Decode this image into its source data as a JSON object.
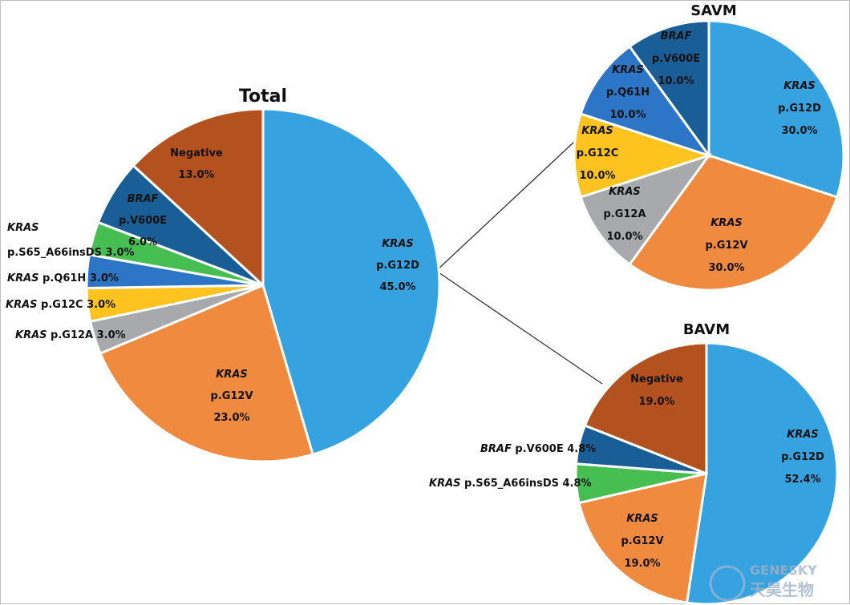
{
  "chart_data": [
    {
      "type": "pie",
      "title": "Total",
      "slices": [
        {
          "gene": "KRAS",
          "variant": "p.G12D",
          "value": 45.0,
          "pct": "45.0%",
          "color": "#36A2E0"
        },
        {
          "gene": "KRAS",
          "variant": "p.G12V",
          "value": 23.0,
          "pct": "23.0%",
          "color": "#F08A3E"
        },
        {
          "gene": "KRAS",
          "variant": "p.G12A",
          "value": 3.0,
          "pct": "3.0%",
          "color": "#A7A9AC"
        },
        {
          "gene": "KRAS",
          "variant": "p.G12C",
          "value": 3.0,
          "pct": "3.0%",
          "color": "#FFC320"
        },
        {
          "gene": "KRAS",
          "variant": "p.Q61H",
          "value": 3.0,
          "pct": "3.0%",
          "color": "#2D75C6"
        },
        {
          "gene": "KRAS",
          "variant": "p.S65_A66insDS",
          "value": 3.0,
          "pct": "3.0%",
          "color": "#47BE52"
        },
        {
          "gene": "BRAF",
          "variant": "p.V600E",
          "value": 6.0,
          "pct": "6.0%",
          "color": "#1A5E97"
        },
        {
          "gene": "",
          "variant": "Negative",
          "value": 13.0,
          "pct": "13.0%",
          "color": "#B4521F"
        }
      ]
    },
    {
      "type": "pie",
      "title": "SAVM",
      "slices": [
        {
          "gene": "KRAS",
          "variant": "p.G12D",
          "value": 30.0,
          "pct": "30.0%",
          "color": "#36A2E0"
        },
        {
          "gene": "KRAS",
          "variant": "p.G12V",
          "value": 30.0,
          "pct": "30.0%",
          "color": "#F08A3E"
        },
        {
          "gene": "KRAS",
          "variant": "p.G12A",
          "value": 10.0,
          "pct": "10.0%",
          "color": "#A7A9AC"
        },
        {
          "gene": "KRAS",
          "variant": "p.G12C",
          "value": 10.0,
          "pct": "10.0%",
          "color": "#FFC320"
        },
        {
          "gene": "KRAS",
          "variant": "p.Q61H",
          "value": 10.0,
          "pct": "10.0%",
          "color": "#2D75C6"
        },
        {
          "gene": "BRAF",
          "variant": "p.V600E",
          "value": 10.0,
          "pct": "10.0%",
          "color": "#1A5E97"
        }
      ]
    },
    {
      "type": "pie",
      "title": "BAVM",
      "slices": [
        {
          "gene": "KRAS",
          "variant": "p.G12D",
          "value": 52.4,
          "pct": "52.4%",
          "color": "#36A2E0"
        },
        {
          "gene": "KRAS",
          "variant": "p.G12V",
          "value": 19.0,
          "pct": "19.0%",
          "color": "#F08A3E"
        },
        {
          "gene": "KRAS",
          "variant": "p.S65_A66insDS",
          "value": 4.8,
          "pct": "4.8%",
          "color": "#47BE52"
        },
        {
          "gene": "BRAF",
          "variant": "p.V600E",
          "value": 4.8,
          "pct": "4.8%",
          "color": "#1A5E97"
        },
        {
          "gene": "",
          "variant": "Negative",
          "value": 19.0,
          "pct": "19.0%",
          "color": "#B4521F"
        }
      ]
    }
  ],
  "watermark": {
    "brand": "GENESKY",
    "chinese": "天昊生物",
    "color": "#8fa9c4"
  }
}
